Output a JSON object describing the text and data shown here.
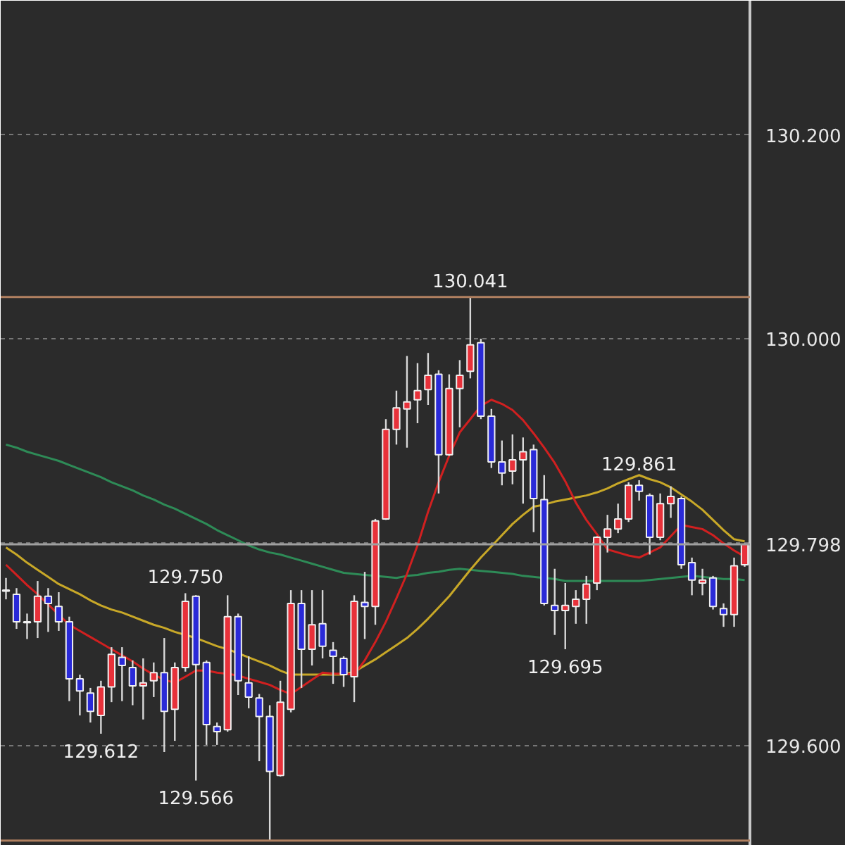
{
  "chart_data": {
    "type": "candlestick",
    "categories": [
      null,
      null,
      null,
      null,
      null,
      null,
      null,
      null,
      null,
      null,
      null,
      null,
      null,
      null,
      null,
      null,
      null,
      null,
      null,
      null,
      null,
      null,
      null,
      null,
      null,
      null,
      null,
      null,
      null,
      null,
      null,
      null,
      null,
      null,
      null,
      null,
      null,
      null,
      null,
      null,
      null,
      null,
      null,
      null,
      null,
      null,
      null,
      null,
      null,
      null,
      null,
      null,
      null,
      null,
      null,
      null,
      null,
      null,
      null,
      null,
      null,
      null,
      null,
      null,
      null,
      null,
      null,
      null,
      null,
      null,
      null
    ],
    "ohlc": [
      [
        129.752,
        129.765,
        129.744,
        129.753
      ],
      [
        129.749,
        129.755,
        129.715,
        129.722
      ],
      [
        129.722,
        129.73,
        129.705,
        129.721
      ],
      [
        129.722,
        129.762,
        129.706,
        129.747
      ],
      [
        129.747,
        129.755,
        129.712,
        129.74
      ],
      [
        129.737,
        129.751,
        129.713,
        129.722
      ],
      [
        129.722,
        129.727,
        129.644,
        129.666
      ],
      [
        129.666,
        129.67,
        129.63,
        129.654
      ],
      [
        129.652,
        129.657,
        129.623,
        129.634
      ],
      [
        129.63,
        129.664,
        129.612,
        129.658
      ],
      [
        129.658,
        129.697,
        129.643,
        129.69
      ],
      [
        129.687,
        129.697,
        129.644,
        129.679
      ],
      [
        129.677,
        129.684,
        129.64,
        129.659
      ],
      [
        129.659,
        129.686,
        129.626,
        129.662
      ],
      [
        129.664,
        129.682,
        129.648,
        129.672
      ],
      [
        129.672,
        129.706,
        129.594,
        129.634
      ],
      [
        129.636,
        129.682,
        129.605,
        129.677
      ],
      [
        129.677,
        129.75,
        129.673,
        129.742
      ],
      [
        129.747,
        129.748,
        129.566,
        129.68
      ],
      [
        129.682,
        129.684,
        129.601,
        129.621
      ],
      [
        129.619,
        129.623,
        129.601,
        129.614
      ],
      [
        129.616,
        129.748,
        129.614,
        129.727
      ],
      [
        129.727,
        129.73,
        129.65,
        129.664
      ],
      [
        129.662,
        129.688,
        129.637,
        129.648
      ],
      [
        129.647,
        129.651,
        129.585,
        129.629
      ],
      [
        129.629,
        129.64,
        129.507,
        129.575
      ],
      [
        129.571,
        129.664,
        129.57,
        129.643
      ],
      [
        129.636,
        129.753,
        129.633,
        129.74
      ],
      [
        129.74,
        129.753,
        129.657,
        129.695
      ],
      [
        129.695,
        129.753,
        129.679,
        129.719
      ],
      [
        129.72,
        129.753,
        129.686,
        129.698
      ],
      [
        129.694,
        129.702,
        129.661,
        129.688
      ],
      [
        129.686,
        129.688,
        129.658,
        129.67
      ],
      [
        129.668,
        129.748,
        129.643,
        129.742
      ],
      [
        129.741,
        129.771,
        129.705,
        129.737
      ],
      [
        129.737,
        129.823,
        129.719,
        129.821
      ],
      [
        129.823,
        129.921,
        129.822,
        129.911
      ],
      [
        129.911,
        129.949,
        129.896,
        129.932
      ],
      [
        129.931,
        129.983,
        129.893,
        129.938
      ],
      [
        129.94,
        129.976,
        129.917,
        129.949
      ],
      [
        129.95,
        129.986,
        129.935,
        129.964
      ],
      [
        129.965,
        129.969,
        129.848,
        129.886
      ],
      [
        129.886,
        129.965,
        129.885,
        129.951
      ],
      [
        129.951,
        129.979,
        129.913,
        129.964
      ],
      [
        129.968,
        130.041,
        129.961,
        129.994
      ],
      [
        129.996,
        130.0,
        129.921,
        129.924
      ],
      [
        129.924,
        129.931,
        129.873,
        129.879
      ],
      [
        129.879,
        129.9,
        129.856,
        129.868
      ],
      [
        129.87,
        129.906,
        129.857,
        129.881
      ],
      [
        129.881,
        129.903,
        129.838,
        129.889
      ],
      [
        129.891,
        129.896,
        129.81,
        129.843
      ],
      [
        129.842,
        129.866,
        129.738,
        129.74
      ],
      [
        129.738,
        129.774,
        129.709,
        129.733
      ],
      [
        129.733,
        129.76,
        129.695,
        129.738
      ],
      [
        129.737,
        129.753,
        129.72,
        129.744
      ],
      [
        129.744,
        129.767,
        129.72,
        129.759
      ],
      [
        129.76,
        129.806,
        129.753,
        129.805
      ],
      [
        129.805,
        129.827,
        129.79,
        129.813
      ],
      [
        129.813,
        129.838,
        129.809,
        129.823
      ],
      [
        129.823,
        129.859,
        129.82,
        129.856
      ],
      [
        129.856,
        129.861,
        129.841,
        129.85
      ],
      [
        129.846,
        129.848,
        129.788,
        129.805
      ],
      [
        129.805,
        129.848,
        129.802,
        129.838
      ],
      [
        129.838,
        129.855,
        129.824,
        129.845
      ],
      [
        129.843,
        129.845,
        129.774,
        129.778
      ],
      [
        129.78,
        129.785,
        129.748,
        129.763
      ],
      [
        129.76,
        129.774,
        129.748,
        129.763
      ],
      [
        129.765,
        129.767,
        129.734,
        129.737
      ],
      [
        129.735,
        129.74,
        129.717,
        129.729
      ],
      [
        129.729,
        129.785,
        129.717,
        129.777
      ],
      [
        129.778,
        129.799,
        129.776,
        129.798
      ]
    ],
    "colors": [
      "#e8313a",
      "#2a2ad8",
      "#2a2ad8",
      "#e8313a",
      "#2a2ad8",
      "#2a2ad8",
      "#2a2ad8",
      "#2a2ad8",
      "#2a2ad8",
      "#e8313a",
      "#e8313a",
      "#2a2ad8",
      "#2a2ad8",
      "#e8313a",
      "#e8313a",
      "#2a2ad8",
      "#e8313a",
      "#e8313a",
      "#2a2ad8",
      "#2a2ad8",
      "#2a2ad8",
      "#e8313a",
      "#2a2ad8",
      "#2a2ad8",
      "#2a2ad8",
      "#2a2ad8",
      "#e8313a",
      "#e8313a",
      "#2a2ad8",
      "#e8313a",
      "#2a2ad8",
      "#2a2ad8",
      "#2a2ad8",
      "#e8313a",
      "#2a2ad8",
      "#e8313a",
      "#e8313a",
      "#e8313a",
      "#e8313a",
      "#e8313a",
      "#e8313a",
      "#2a2ad8",
      "#e8313a",
      "#e8313a",
      "#e8313a",
      "#2a2ad8",
      "#2a2ad8",
      "#2a2ad8",
      "#e8313a",
      "#e8313a",
      "#2a2ad8",
      "#2a2ad8",
      "#2a2ad8",
      "#e8313a",
      "#e8313a",
      "#e8313a",
      "#e8313a",
      "#e8313a",
      "#e8313a",
      "#e8313a",
      "#2a2ad8",
      "#2a2ad8",
      "#e8313a",
      "#e8313a",
      "#2a2ad8",
      "#2a2ad8",
      "#e8313a",
      "#2a2ad8",
      "#2a2ad8",
      "#e8313a",
      "#e8313a"
    ],
    "series": [
      {
        "type": "line",
        "color": "#2e8b57",
        "values": [
          129.896,
          129.893,
          129.889,
          129.886,
          129.883,
          129.88,
          129.876,
          129.872,
          129.868,
          129.864,
          129.859,
          129.855,
          129.851,
          129.846,
          129.842,
          129.837,
          129.833,
          129.828,
          129.823,
          129.818,
          129.812,
          129.807,
          129.802,
          129.797,
          129.793,
          129.79,
          129.788,
          129.785,
          129.782,
          129.779,
          129.776,
          129.773,
          129.77,
          129.769,
          129.768,
          129.767,
          129.766,
          129.765,
          129.767,
          129.768,
          129.77,
          129.771,
          129.773,
          129.774,
          129.773,
          129.772,
          129.771,
          129.77,
          129.769,
          129.767,
          129.766,
          129.765,
          129.764,
          129.762,
          129.762,
          129.762,
          129.762,
          129.762,
          129.762,
          129.762,
          129.762,
          129.763,
          129.764,
          129.765,
          129.766,
          129.767,
          129.766,
          129.765,
          129.764,
          129.764,
          129.763
        ]
      },
      {
        "type": "line",
        "color": "#c8a828",
        "values": [
          129.795,
          129.788,
          129.78,
          129.773,
          129.766,
          129.759,
          129.754,
          129.749,
          129.743,
          129.738,
          129.734,
          129.731,
          129.727,
          129.723,
          129.719,
          129.716,
          129.712,
          129.709,
          129.706,
          129.702,
          129.698,
          129.695,
          129.691,
          129.687,
          129.683,
          129.679,
          129.674,
          129.67,
          129.67,
          129.67,
          129.67,
          129.67,
          129.67,
          129.673,
          129.679,
          129.685,
          129.692,
          129.699,
          129.706,
          129.715,
          129.725,
          129.736,
          129.747,
          129.76,
          129.773,
          129.785,
          129.796,
          129.807,
          129.818,
          129.827,
          129.835,
          129.837,
          129.84,
          129.842,
          129.844,
          129.846,
          129.849,
          129.853,
          129.858,
          129.862,
          129.866,
          129.862,
          129.859,
          129.854,
          129.847,
          129.84,
          129.832,
          129.822,
          129.812,
          129.803,
          129.801
        ]
      },
      {
        "type": "line",
        "color": "#d02020",
        "values": [
          129.778,
          129.768,
          129.758,
          129.749,
          129.739,
          129.729,
          129.719,
          129.713,
          129.707,
          129.701,
          129.695,
          129.689,
          129.683,
          129.676,
          129.67,
          129.665,
          129.662,
          129.668,
          129.674,
          129.674,
          129.672,
          129.671,
          129.669,
          129.666,
          129.663,
          129.66,
          129.655,
          129.651,
          129.658,
          129.665,
          129.672,
          129.671,
          129.671,
          129.67,
          129.684,
          129.702,
          129.722,
          129.745,
          129.769,
          129.797,
          129.83,
          129.859,
          129.885,
          129.908,
          129.921,
          129.934,
          129.94,
          129.936,
          129.93,
          129.92,
          129.907,
          129.893,
          129.878,
          129.86,
          129.839,
          129.822,
          129.808,
          129.793,
          129.79,
          129.787,
          129.785,
          129.79,
          129.795,
          129.806,
          129.817,
          129.815,
          129.813,
          129.807,
          129.799,
          129.792,
          129.786
        ]
      }
    ],
    "ylim": [
      129.502,
      130.332
    ],
    "yticks": [
      {
        "value": 129.6,
        "label": "129.600"
      },
      {
        "value": 129.8,
        "label": null
      },
      {
        "value": 130.0,
        "label": "130.000"
      },
      {
        "value": 130.2,
        "label": "130.200"
      }
    ],
    "tick_labels": "y",
    "grid": "y",
    "ref_lines": [
      {
        "axis": "y",
        "value": 130.041,
        "color": "#b08060"
      },
      {
        "axis": "y",
        "value": 129.507,
        "color": "#b08060"
      },
      {
        "axis": "y",
        "value": 129.798,
        "label": "129.798",
        "color": "#a0a0a0"
      }
    ],
    "annotations": [
      {
        "text": "129.750",
        "y": 129.75
      },
      {
        "text": "129.612",
        "y": 129.612
      },
      {
        "text": "129.566",
        "y": 129.566
      },
      {
        "text": "130.041",
        "y": 130.041
      },
      {
        "text": "129.695",
        "y": 129.695
      },
      {
        "text": "129.861",
        "y": 129.861
      }
    ]
  }
}
